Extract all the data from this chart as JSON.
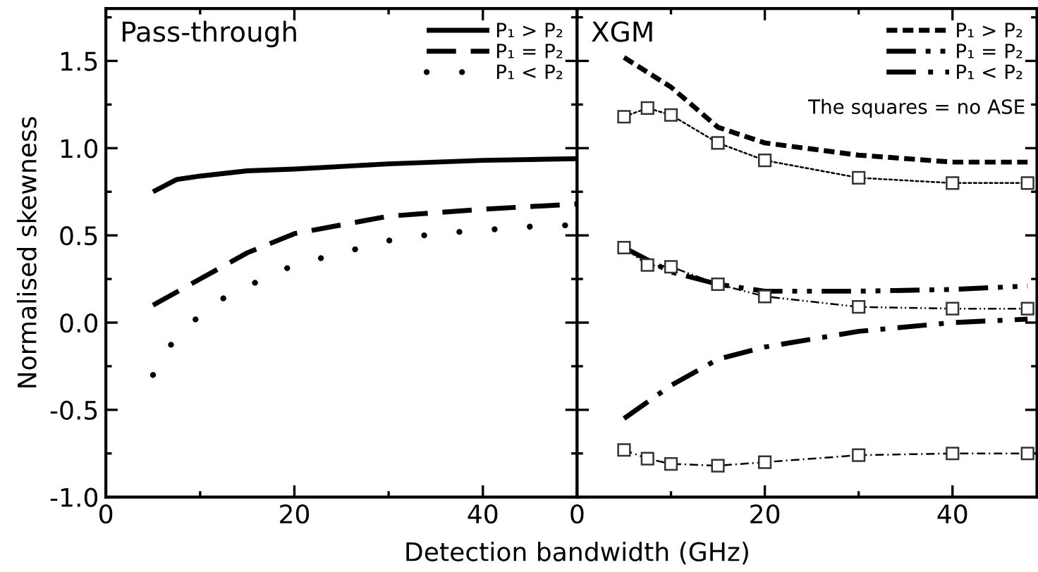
{
  "chart_data": [
    {
      "type": "line",
      "title": "Pass-through",
      "xlabel": "Detection bandwidth (GHz)",
      "ylabel": "Normalised skewness",
      "xlim": [
        0,
        50
      ],
      "xticks": [
        0,
        20,
        40
      ],
      "ylim": [
        -1.0,
        1.8
      ],
      "yticks": [
        {
          "value": -1.0,
          "label": "-1.0"
        },
        {
          "value": -0.5,
          "label": "-0.5"
        },
        {
          "value": 0.0,
          "label": "0.0"
        },
        {
          "value": 0.5,
          "label": "0.5"
        },
        {
          "value": 1.0,
          "label": "1.0"
        },
        {
          "value": 1.5,
          "label": "1.5"
        }
      ],
      "legend": "top right",
      "grid": false,
      "series": [
        {
          "name": "P₁ > P₂",
          "color": "#000000",
          "line_style": "solid",
          "x": [
            5,
            7.5,
            10,
            15,
            20,
            30,
            40,
            50
          ],
          "values": [
            0.75,
            0.82,
            0.84,
            0.87,
            0.88,
            0.91,
            0.93,
            0.94
          ]
        },
        {
          "name": "P₁ = P₂",
          "color": "#000000",
          "line_style": "dashed",
          "x": [
            5,
            10,
            15,
            20,
            30,
            40,
            50
          ],
          "values": [
            0.1,
            0.25,
            0.4,
            0.51,
            0.61,
            0.65,
            0.68
          ]
        },
        {
          "name": "P₁ < P₂",
          "color": "#000000",
          "line_style": "dotted",
          "x": [
            5,
            6.5,
            9,
            11,
            14,
            17,
            20,
            25,
            30,
            35,
            40,
            45,
            50
          ],
          "values": [
            -0.3,
            -0.15,
            -0.01,
            0.1,
            0.18,
            0.26,
            0.33,
            0.4,
            0.47,
            0.51,
            0.53,
            0.55,
            0.56
          ]
        }
      ]
    },
    {
      "type": "line",
      "title": "XGM",
      "annotations": [
        "The squares = no ASE"
      ],
      "xlim": [
        0,
        49
      ],
      "xticks": [
        0,
        20,
        40
      ],
      "ylim": [
        -1.0,
        1.8
      ],
      "tick_labels": "x",
      "legend": "top right",
      "grid": false,
      "series": [
        {
          "name": "P₁ > P₂",
          "color": "#000000",
          "line_style": "shortdash",
          "x": [
            5,
            10,
            15,
            20,
            30,
            40,
            48
          ],
          "values": [
            1.52,
            1.35,
            1.12,
            1.03,
            0.96,
            0.92,
            0.92
          ]
        },
        {
          "name": "P₁ = P₂",
          "color": "#000000",
          "line_style": "dashdotdot",
          "x": [
            5,
            10,
            15,
            20,
            30,
            40,
            48
          ],
          "values": [
            0.43,
            0.29,
            0.22,
            0.18,
            0.18,
            0.19,
            0.21
          ]
        },
        {
          "name": "P₁ < P₂",
          "color": "#000000",
          "line_style": "dashdot",
          "x": [
            5,
            10,
            15,
            20,
            30,
            40,
            48
          ],
          "values": [
            -0.55,
            -0.36,
            -0.21,
            -0.14,
            -0.05,
            0.0,
            0.02
          ]
        },
        {
          "color": "#000000",
          "line_style": "dotted",
          "marker": "square",
          "x": [
            5,
            7.5,
            10,
            15,
            20,
            30,
            40,
            48
          ],
          "values": [
            1.18,
            1.23,
            1.19,
            1.03,
            0.93,
            0.83,
            0.8,
            0.8
          ]
        },
        {
          "color": "#000000",
          "line_style": "dashdotdot",
          "marker": "square",
          "x": [
            5,
            7.5,
            10,
            15,
            20,
            30,
            40,
            48
          ],
          "values": [
            0.43,
            0.33,
            0.32,
            0.22,
            0.15,
            0.09,
            0.08,
            0.08
          ]
        },
        {
          "color": "#000000",
          "line_style": "dashdot",
          "marker": "square",
          "x": [
            5,
            7.5,
            10,
            15,
            20,
            30,
            40,
            48
          ],
          "values": [
            -0.73,
            -0.78,
            -0.81,
            -0.82,
            -0.8,
            -0.76,
            -0.75,
            -0.75
          ]
        }
      ]
    }
  ]
}
